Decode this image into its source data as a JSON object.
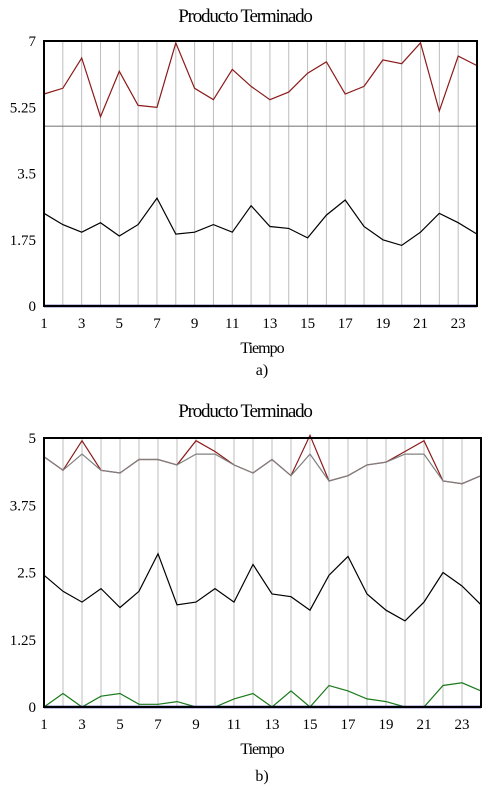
{
  "chart_data": [
    {
      "type": "line",
      "title": "Producto Terminado",
      "xlabel": "Tiempo",
      "ylabel": "",
      "caption": "a)",
      "xlim": [
        1,
        24
      ],
      "ylim": [
        0,
        7
      ],
      "yticks": [
        "7",
        "5.25",
        "3.5",
        "1.75",
        "0"
      ],
      "ytick_values": [
        7,
        5.25,
        3.5,
        1.75,
        0
      ],
      "xticks": [
        "1",
        "3",
        "5",
        "7",
        "9",
        "11",
        "13",
        "15",
        "17",
        "19",
        "21",
        "23"
      ],
      "xtick_values": [
        1,
        3,
        5,
        7,
        9,
        11,
        13,
        15,
        17,
        19,
        21,
        23
      ],
      "grid": true,
      "x": [
        1,
        2,
        3,
        4,
        5,
        6,
        7,
        8,
        9,
        10,
        11,
        12,
        13,
        14,
        15,
        16,
        17,
        18,
        19,
        20,
        21,
        22,
        23,
        24
      ],
      "series": [
        {
          "color": "#8b1a1a",
          "values": [
            5.6,
            5.75,
            6.55,
            5.0,
            6.2,
            5.3,
            5.25,
            6.95,
            5.75,
            5.45,
            6.25,
            5.8,
            5.45,
            5.65,
            6.15,
            6.45,
            5.6,
            5.8,
            6.5,
            6.4,
            6.95,
            5.15,
            6.6,
            6.35
          ]
        },
        {
          "color": "#808080",
          "values": [
            4.75,
            4.75,
            4.75,
            4.75,
            4.75,
            4.75,
            4.75,
            4.75,
            4.75,
            4.75,
            4.75,
            4.75,
            4.75,
            4.75,
            4.75,
            4.75,
            4.75,
            4.75,
            4.75,
            4.75,
            4.75,
            4.75,
            4.75,
            4.75
          ]
        },
        {
          "color": "#000000",
          "values": [
            2.45,
            2.15,
            1.95,
            2.2,
            1.85,
            2.15,
            2.85,
            1.9,
            1.95,
            2.15,
            1.95,
            2.65,
            2.1,
            2.05,
            1.8,
            2.4,
            2.8,
            2.1,
            1.75,
            1.6,
            1.95,
            2.45,
            2.2,
            1.9
          ]
        },
        {
          "color": "#00008b",
          "values": [
            0,
            0,
            0,
            0,
            0,
            0,
            0,
            0,
            0,
            0,
            0,
            0,
            0,
            0,
            0,
            0,
            0,
            0,
            0,
            0,
            0,
            0,
            0,
            0
          ]
        }
      ]
    },
    {
      "type": "line",
      "title": "Producto Terminado",
      "xlabel": "Tiempo",
      "ylabel": "",
      "caption": "b)",
      "xlim": [
        1,
        24
      ],
      "ylim": [
        0,
        5
      ],
      "yticks": [
        "5",
        "3.75",
        "2.5",
        "1.25",
        "0"
      ],
      "ytick_values": [
        5,
        3.75,
        2.5,
        1.25,
        0
      ],
      "xticks": [
        "1",
        "3",
        "5",
        "7",
        "9",
        "11",
        "13",
        "15",
        "17",
        "19",
        "21",
        "23"
      ],
      "xtick_values": [
        1,
        3,
        5,
        7,
        9,
        11,
        13,
        15,
        17,
        19,
        21,
        23
      ],
      "grid": true,
      "x": [
        1,
        2,
        3,
        4,
        5,
        6,
        7,
        8,
        9,
        10,
        11,
        12,
        13,
        14,
        15,
        16,
        17,
        18,
        19,
        20,
        21,
        22,
        23,
        24
      ],
      "series": [
        {
          "color": "#8b1a1a",
          "values": [
            4.65,
            4.4,
            4.95,
            4.4,
            4.35,
            4.6,
            4.6,
            4.5,
            4.95,
            4.75,
            4.5,
            4.35,
            4.6,
            4.3,
            5.05,
            4.2,
            4.3,
            4.5,
            4.55,
            4.75,
            4.95,
            4.2,
            4.15,
            4.3
          ]
        },
        {
          "color": "#808080",
          "values": [
            4.65,
            4.4,
            4.7,
            4.4,
            4.35,
            4.6,
            4.6,
            4.5,
            4.7,
            4.7,
            4.5,
            4.35,
            4.6,
            4.3,
            4.7,
            4.2,
            4.3,
            4.5,
            4.55,
            4.7,
            4.7,
            4.2,
            4.15,
            4.3
          ]
        },
        {
          "color": "#000000",
          "values": [
            2.45,
            2.15,
            1.95,
            2.2,
            1.85,
            2.15,
            2.85,
            1.9,
            1.95,
            2.2,
            1.95,
            2.65,
            2.1,
            2.05,
            1.8,
            2.45,
            2.8,
            2.1,
            1.8,
            1.6,
            1.95,
            2.5,
            2.25,
            1.9
          ]
        },
        {
          "color": "#1a7a1a",
          "values": [
            0,
            0.25,
            0,
            0.2,
            0.25,
            0.05,
            0.05,
            0.1,
            0,
            0,
            0.15,
            0.25,
            0,
            0.3,
            0,
            0.4,
            0.3,
            0.15,
            0.1,
            0,
            0,
            0.4,
            0.45,
            0.3
          ]
        },
        {
          "color": "#00008b",
          "values": [
            0,
            0,
            0,
            0,
            0,
            0,
            0,
            0,
            0,
            0,
            0,
            0,
            0,
            0,
            0,
            0,
            0,
            0,
            0,
            0,
            0,
            0,
            0,
            0
          ]
        }
      ]
    }
  ]
}
